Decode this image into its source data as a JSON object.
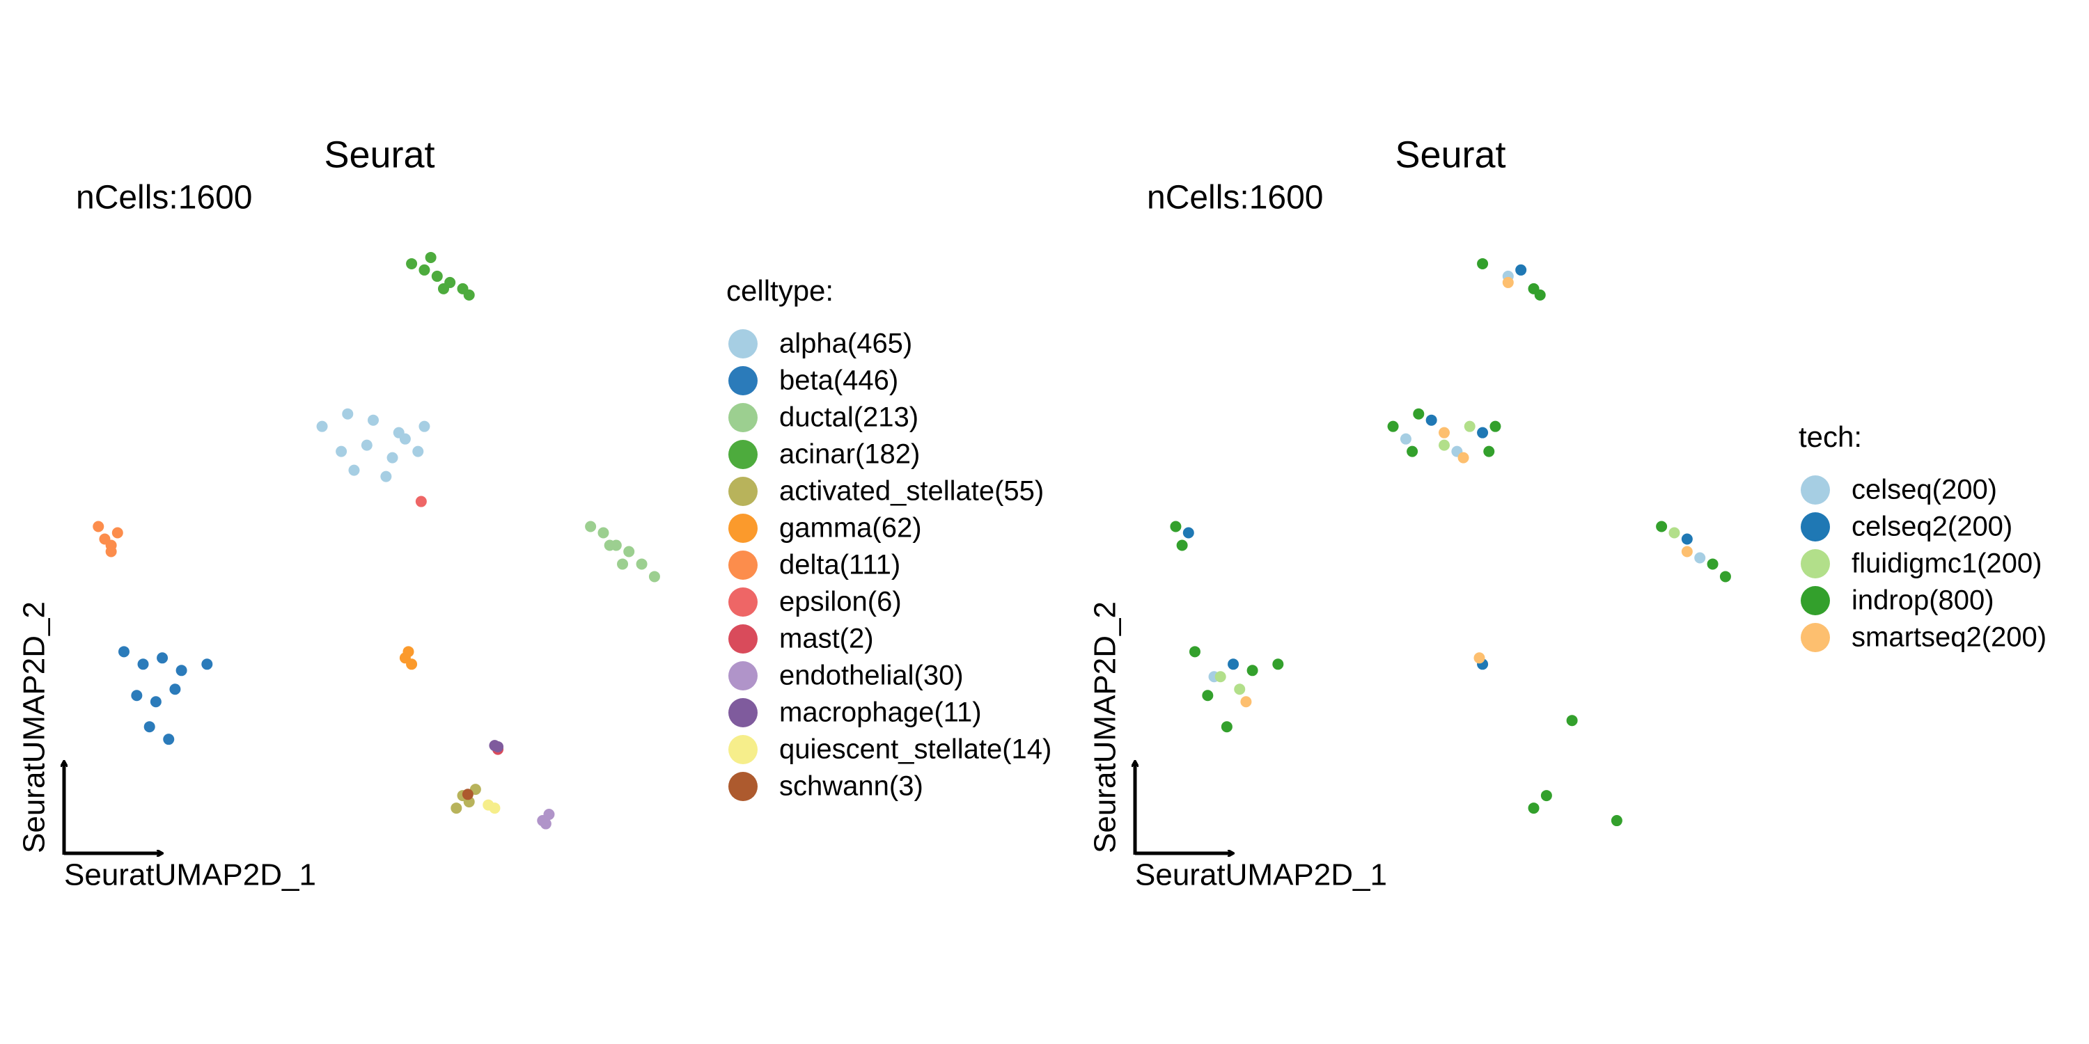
{
  "chart_data": [
    {
      "type": "scatter",
      "title": "Seurat",
      "subtitle": "nCells:1600",
      "xlabel": "SeuratUMAP2D_1",
      "ylabel": "SeuratUMAP2D_2",
      "legend_title": "celltype:",
      "xlim": [
        0,
        100
      ],
      "ylim": [
        0,
        100
      ],
      "series": [
        {
          "name": "alpha(465)",
          "color": "#a6cee3",
          "x": [
            42,
            46,
            50,
            54,
            58,
            45,
            49,
            53,
            57,
            47,
            52,
            55
          ],
          "y": [
            68,
            70,
            69,
            67,
            68,
            64,
            65,
            63,
            64,
            61,
            60,
            66
          ]
        },
        {
          "name": "beta(446)",
          "color": "#2b7bba",
          "x": [
            11,
            14,
            17,
            20,
            24,
            13,
            16,
            19,
            15,
            18
          ],
          "y": [
            32,
            30,
            31,
            29,
            30,
            25,
            24,
            26,
            20,
            18
          ]
        },
        {
          "name": "ductal(213)",
          "color": "#9ccf90",
          "x": [
            84,
            86,
            88,
            90,
            92,
            94,
            89,
            87
          ],
          "y": [
            52,
            51,
            49,
            48,
            46,
            44,
            46,
            49
          ]
        },
        {
          "name": "acinar(182)",
          "color": "#4dab3d",
          "x": [
            56,
            58,
            60,
            62,
            64,
            65,
            59,
            61
          ],
          "y": [
            94,
            93,
            92,
            91,
            90,
            89,
            95,
            90
          ]
        },
        {
          "name": "activated_stellate(55)",
          "color": "#b8b35b",
          "x": [
            63,
            64,
            65,
            66
          ],
          "y": [
            7,
            9,
            8,
            10
          ]
        },
        {
          "name": "gamma(62)",
          "color": "#fb9a2c",
          "x": [
            55,
            56,
            55.5
          ],
          "y": [
            31,
            30,
            32
          ]
        },
        {
          "name": "delta(111)",
          "color": "#fc8d4c",
          "x": [
            7,
            8,
            9,
            10,
            9
          ],
          "y": [
            52,
            50,
            49,
            51,
            48
          ]
        },
        {
          "name": "epsilon(6)",
          "color": "#ee6666",
          "x": [
            57.5
          ],
          "y": [
            56
          ]
        },
        {
          "name": "mast(2)",
          "color": "#d94b5b",
          "x": [
            69.5
          ],
          "y": [
            16.4
          ]
        },
        {
          "name": "endothelial(30)",
          "color": "#b094c9",
          "x": [
            76.5,
            77.5,
            77
          ],
          "y": [
            5,
            6,
            4.5
          ]
        },
        {
          "name": "macrophage(11)",
          "color": "#7f5b9d",
          "x": [
            69,
            69.5
          ],
          "y": [
            17,
            16.8
          ]
        },
        {
          "name": "quiescent_stellate(14)",
          "color": "#f6ee8b",
          "x": [
            68,
            69
          ],
          "y": [
            7.5,
            7
          ]
        },
        {
          "name": "schwann(3)",
          "color": "#ad5a2e",
          "x": [
            64.8
          ],
          "y": [
            9.2
          ]
        }
      ]
    },
    {
      "type": "scatter",
      "title": "Seurat",
      "subtitle": "nCells:1600",
      "xlabel": "SeuratUMAP2D_1",
      "ylabel": "SeuratUMAP2D_2",
      "legend_title": "tech:",
      "xlim": [
        0,
        100
      ],
      "ylim": [
        0,
        100
      ],
      "series": [
        {
          "name": "celseq(200)",
          "color": "#a6cee3",
          "x": [
            44,
            52,
            90,
            14,
            60
          ],
          "y": [
            66,
            64,
            47,
            28,
            92
          ]
        },
        {
          "name": "celseq2(200)",
          "color": "#1f78b4",
          "x": [
            48,
            56,
            88,
            17,
            62,
            10,
            56
          ],
          "y": [
            69,
            67,
            50,
            30,
            93,
            51,
            30
          ]
        },
        {
          "name": "fluidigmc1(200)",
          "color": "#b2df8a",
          "x": [
            50,
            54,
            18,
            86,
            15
          ],
          "y": [
            65,
            68,
            26,
            51,
            28
          ]
        },
        {
          "name": "indrop(800)",
          "color": "#33a02c",
          "x": [
            42,
            46,
            58,
            45,
            57,
            11,
            13,
            20,
            24,
            16,
            84,
            92,
            94,
            56,
            64,
            65,
            8,
            9,
            64,
            66,
            77,
            70
          ],
          "y": [
            68,
            70,
            68,
            64,
            64,
            32,
            25,
            29,
            30,
            20,
            52,
            46,
            44,
            94,
            90,
            89,
            52,
            49,
            7,
            9,
            5,
            21
          ]
        },
        {
          "name": "smartseq2(200)",
          "color": "#fdbf6f",
          "x": [
            50,
            53,
            60,
            88,
            19,
            55.5
          ],
          "y": [
            67,
            63,
            91,
            48,
            24,
            31
          ]
        }
      ]
    }
  ]
}
